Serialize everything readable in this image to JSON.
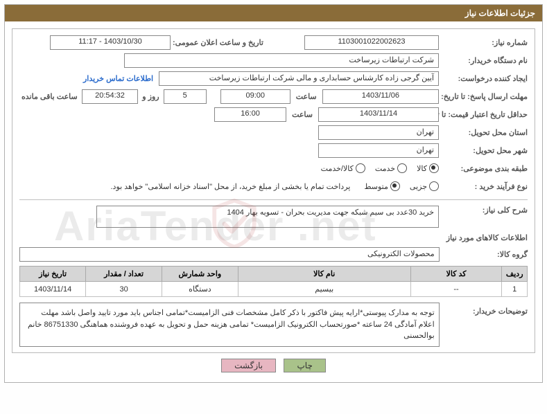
{
  "title": "جزئیات اطلاعات نیاز",
  "labels": {
    "need_no": "شماره نیاز:",
    "announce_dt": "تاریخ و ساعت اعلان عمومی:",
    "buyer_org": "نام دستگاه خریدار:",
    "requestor": "ایجاد کننده درخواست:",
    "contact_link": "اطلاعات تماس خریدار",
    "reply_deadline": "مهلت ارسال پاسخ: تا تاریخ:",
    "price_valid": "حداقل تاریخ اعتبار قیمت: تا تاریخ:",
    "time_word": "ساعت",
    "days_and": "روز و",
    "remaining": "ساعت باقی مانده",
    "delivery_prov": "استان محل تحویل:",
    "delivery_city": "شهر محل تحویل:",
    "subject_cat": "طبقه بندی موضوعی:",
    "cat_goods": "کالا",
    "cat_service": "خدمت",
    "cat_goods_service": "کالا/خدمت",
    "purchase_type": "نوع فرآیند خرید :",
    "ptype_partial": "جزیی",
    "ptype_medium": "متوسط",
    "ptype_note": "پرداخت تمام یا بخشی از مبلغ خرید، از محل \"اسناد خزانه اسلامی\" خواهد بود.",
    "need_summary": "شرح کلی نیاز:",
    "goods_info": "اطلاعات کالاهای مورد نیاز",
    "group_goods": "گروه کالا:",
    "buyer_remarks": "توضیحات خریدار:",
    "btn_print": "چاپ",
    "btn_back": "بازگشت"
  },
  "values": {
    "need_no": "1103001022002623",
    "announce_dt": "1403/10/30 - 11:17",
    "buyer_org": "شرکت ارتباطات زیرساخت",
    "requestor": "آیین گرجی زاده کارشناس حسابداری و مالی شرکت ارتباطات زیرساخت",
    "reply_date": "1403/11/06",
    "reply_time": "09:00",
    "days_left": "5",
    "time_left": "20:54:32",
    "price_valid_date": "1403/11/14",
    "price_valid_time": "16:00",
    "delivery_prov": "تهران",
    "delivery_city": "تهران",
    "need_summary": "خرید 30عدد بی سیم شبکه جهت مدیریت بحران -         تسویه بهار 1404",
    "group_goods": "محصولات الکترونیکی",
    "buyer_remarks": "توجه به مدارک پیوستی*ارایه پیش فاکتور با ذکر کامل مشخصات فنی الزامیست*تمامی اجناس باید مورد تایید واصل باشد مهلت اعلام آمادگی 24 ساعته *صورتحساب الکترونیک الزامیست* تمامی هزینه حمل و تحویل به عهده فروشنده هماهنگی 86751330 خانم بوالحسنی"
  },
  "category_selected": "goods",
  "ptype_selected": "medium",
  "table": {
    "headers": {
      "row": "ردیف",
      "code": "کد کالا",
      "name": "نام کالا",
      "unit": "واحد شمارش",
      "qty": "تعداد / مقدار",
      "date": "تاریخ نیاز"
    },
    "rows": [
      {
        "row": "1",
        "code": "--",
        "name": "بیسیم",
        "unit": "دستگاه",
        "qty": "30",
        "date": "1403/11/14"
      }
    ],
    "col_widths": {
      "row": "5%",
      "code": "18%",
      "name": "34%",
      "unit": "15%",
      "qty": "15%",
      "date": "13%"
    }
  },
  "colors": {
    "titlebar_bg": "#8a6c39",
    "titlebar_fg": "#ffffff",
    "border": "#888888",
    "thead_bg": "#d6d6d6",
    "btn_print_bg": "#a9c28a",
    "btn_back_bg": "#e7b6c1"
  },
  "watermark": "AriaTender .net"
}
